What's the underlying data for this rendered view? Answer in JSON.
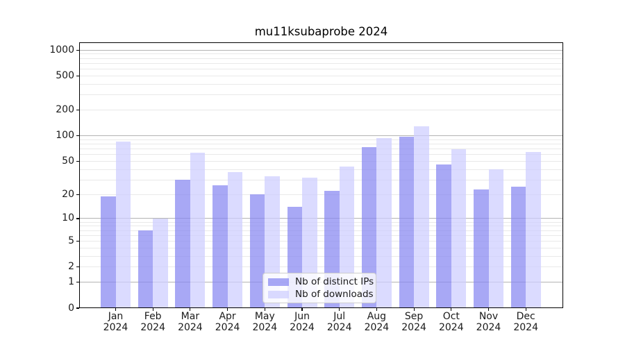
{
  "title": "mu11ksubaprobe 2024",
  "chart_data": {
    "type": "bar",
    "categories": [
      "Jan 2024",
      "Feb 2024",
      "Mar 2024",
      "Apr 2024",
      "May 2024",
      "Jun 2024",
      "Jul 2024",
      "Aug 2024",
      "Sep 2024",
      "Oct 2024",
      "Nov 2024",
      "Dec 2024"
    ],
    "series": [
      {
        "name": "Nb of distinct IPs",
        "color": "rgba(134,134,241,0.72)",
        "values": [
          19,
          7,
          30,
          26,
          20,
          14,
          22,
          74,
          97,
          46,
          23,
          25
        ]
      },
      {
        "name": "Nb of downloads",
        "color": "rgba(205,205,255,0.72)",
        "values": [
          85,
          10,
          63,
          37,
          33,
          32,
          43,
          94,
          130,
          70,
          40,
          65
        ]
      }
    ],
    "yscale": "log1p",
    "yticks": [
      0,
      1,
      2,
      5,
      10,
      20,
      50,
      100,
      200,
      500,
      1000
    ],
    "ylim": [
      0,
      1250
    ],
    "xlabel": "",
    "ylabel": "",
    "grid": "on",
    "legend_position": "lower center inside"
  },
  "colors": {
    "major_grid": "#b3b3b3",
    "minor_grid": "#e9e9e9",
    "axis": "#000000",
    "text": "#1a1a1a",
    "legend_border": "#cccccc",
    "background": "#ffffff"
  }
}
